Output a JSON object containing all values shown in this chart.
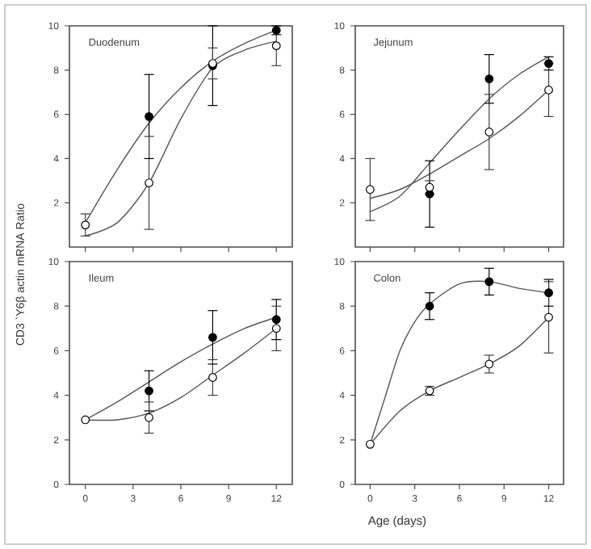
{
  "chart_data": [
    {
      "type": "scatter",
      "title": "Duodenum",
      "ylabel": "CD3 `Y6β actin mRNA Ratio",
      "x": [
        0,
        4,
        8,
        12
      ],
      "xlim": [
        -1,
        13
      ],
      "xticks": [
        0,
        3,
        6,
        9,
        12
      ],
      "ylim": [
        0,
        10
      ],
      "yticks": [
        2,
        4,
        6,
        8,
        10
      ],
      "tick_labels": "y",
      "marker": "circle",
      "series": [
        {
          "type": "line",
          "marker": "none",
          "color": "#555555",
          "x": [
            0,
            2,
            4,
            6,
            8,
            10,
            12
          ],
          "values": [
            1.1,
            3.5,
            5.6,
            7.2,
            8.4,
            9.2,
            9.8
          ]
        },
        {
          "type": "line",
          "marker": "none",
          "color": "#555555",
          "x": [
            0,
            2,
            4,
            6,
            8,
            10,
            12
          ],
          "values": [
            0.5,
            1.1,
            2.9,
            5.8,
            8.1,
            8.9,
            9.3
          ]
        },
        {
          "color": "#000000",
          "values": [
            null,
            5.9,
            8.2,
            9.8
          ],
          "errors": [
            null,
            1.9,
            1.8,
            0.2
          ]
        },
        {
          "color": "#ffffff",
          "values": [
            1.0,
            2.9,
            8.3,
            9.1
          ],
          "errors": [
            0.5,
            2.1,
            0.7,
            0.9
          ]
        }
      ]
    },
    {
      "type": "scatter",
      "title": "Jejunum",
      "x": [
        0,
        4,
        8,
        12
      ],
      "xlim": [
        -1,
        13
      ],
      "xticks": [
        0,
        3,
        6,
        9,
        12
      ],
      "ylim": [
        0,
        10
      ],
      "yticks": [
        2,
        4,
        6,
        8,
        10
      ],
      "tick_labels": "y",
      "marker": "circle",
      "series": [
        {
          "type": "line",
          "marker": "none",
          "color": "#555555",
          "x": [
            0,
            2,
            4,
            6,
            8,
            10,
            12
          ],
          "values": [
            1.6,
            2.3,
            3.8,
            5.3,
            6.7,
            7.8,
            8.6
          ]
        },
        {
          "type": "line",
          "marker": "none",
          "color": "#555555",
          "x": [
            0,
            2,
            4,
            6,
            8,
            10,
            12
          ],
          "values": [
            2.2,
            2.6,
            3.3,
            4.1,
            4.9,
            5.9,
            7.1
          ]
        },
        {
          "color": "#000000",
          "values": [
            null,
            2.4,
            7.6,
            8.3
          ],
          "errors": [
            null,
            1.5,
            1.1,
            0.3
          ]
        },
        {
          "color": "#ffffff",
          "values": [
            2.6,
            2.7,
            5.2,
            7.1
          ],
          "errors": [
            1.4,
            0.3,
            1.7,
            1.2
          ]
        }
      ]
    },
    {
      "type": "scatter",
      "title": "Ileum",
      "x": [
        0,
        4,
        8,
        12
      ],
      "xlim": [
        -1,
        13
      ],
      "xticks": [
        0,
        3,
        6,
        9,
        12
      ],
      "ylim": [
        0,
        10
      ],
      "yticks": [
        0,
        2,
        4,
        6,
        8,
        10
      ],
      "marker": "circle",
      "series": [
        {
          "type": "line",
          "marker": "none",
          "color": "#555555",
          "x": [
            0,
            2,
            4,
            6,
            8,
            10,
            12
          ],
          "values": [
            2.9,
            3.7,
            4.6,
            5.5,
            6.3,
            7.0,
            7.5
          ]
        },
        {
          "type": "line",
          "marker": "none",
          "color": "#555555",
          "x": [
            0,
            2,
            4,
            6,
            8,
            10,
            12
          ],
          "values": [
            2.9,
            2.9,
            3.2,
            3.9,
            4.9,
            5.9,
            7.0
          ]
        },
        {
          "color": "#000000",
          "values": [
            null,
            4.2,
            6.6,
            7.4
          ],
          "errors": [
            null,
            0.9,
            1.2,
            0.9
          ]
        },
        {
          "color": "#ffffff",
          "values": [
            2.9,
            3.0,
            4.8,
            7.0
          ],
          "errors": [
            null,
            0.7,
            0.8,
            1.0
          ]
        }
      ]
    },
    {
      "type": "scatter",
      "title": "Colon",
      "xlabel": "Age (days)",
      "x": [
        0,
        4,
        8,
        12
      ],
      "xlim": [
        -1,
        13
      ],
      "xticks": [
        0,
        3,
        6,
        9,
        12
      ],
      "ylim": [
        0,
        10
      ],
      "yticks": [
        0,
        2,
        4,
        6,
        8,
        10
      ],
      "marker": "circle",
      "series": [
        {
          "type": "line",
          "marker": "none",
          "color": "#555555",
          "x": [
            0,
            1,
            2,
            3,
            4,
            6,
            8,
            10,
            12
          ],
          "values": [
            1.8,
            3.9,
            6.0,
            7.3,
            8.1,
            9.0,
            9.1,
            8.8,
            8.6
          ]
        },
        {
          "type": "line",
          "marker": "none",
          "color": "#555555",
          "x": [
            0,
            2,
            4,
            6,
            8,
            10,
            12
          ],
          "values": [
            1.8,
            3.3,
            4.2,
            4.8,
            5.4,
            6.2,
            7.5
          ]
        },
        {
          "color": "#000000",
          "values": [
            null,
            8.0,
            9.1,
            8.6
          ],
          "errors": [
            null,
            0.6,
            0.6,
            0.6
          ]
        },
        {
          "color": "#ffffff",
          "values": [
            1.8,
            4.2,
            5.4,
            7.5
          ],
          "errors": [
            null,
            0.2,
            0.4,
            1.6
          ]
        }
      ]
    }
  ]
}
